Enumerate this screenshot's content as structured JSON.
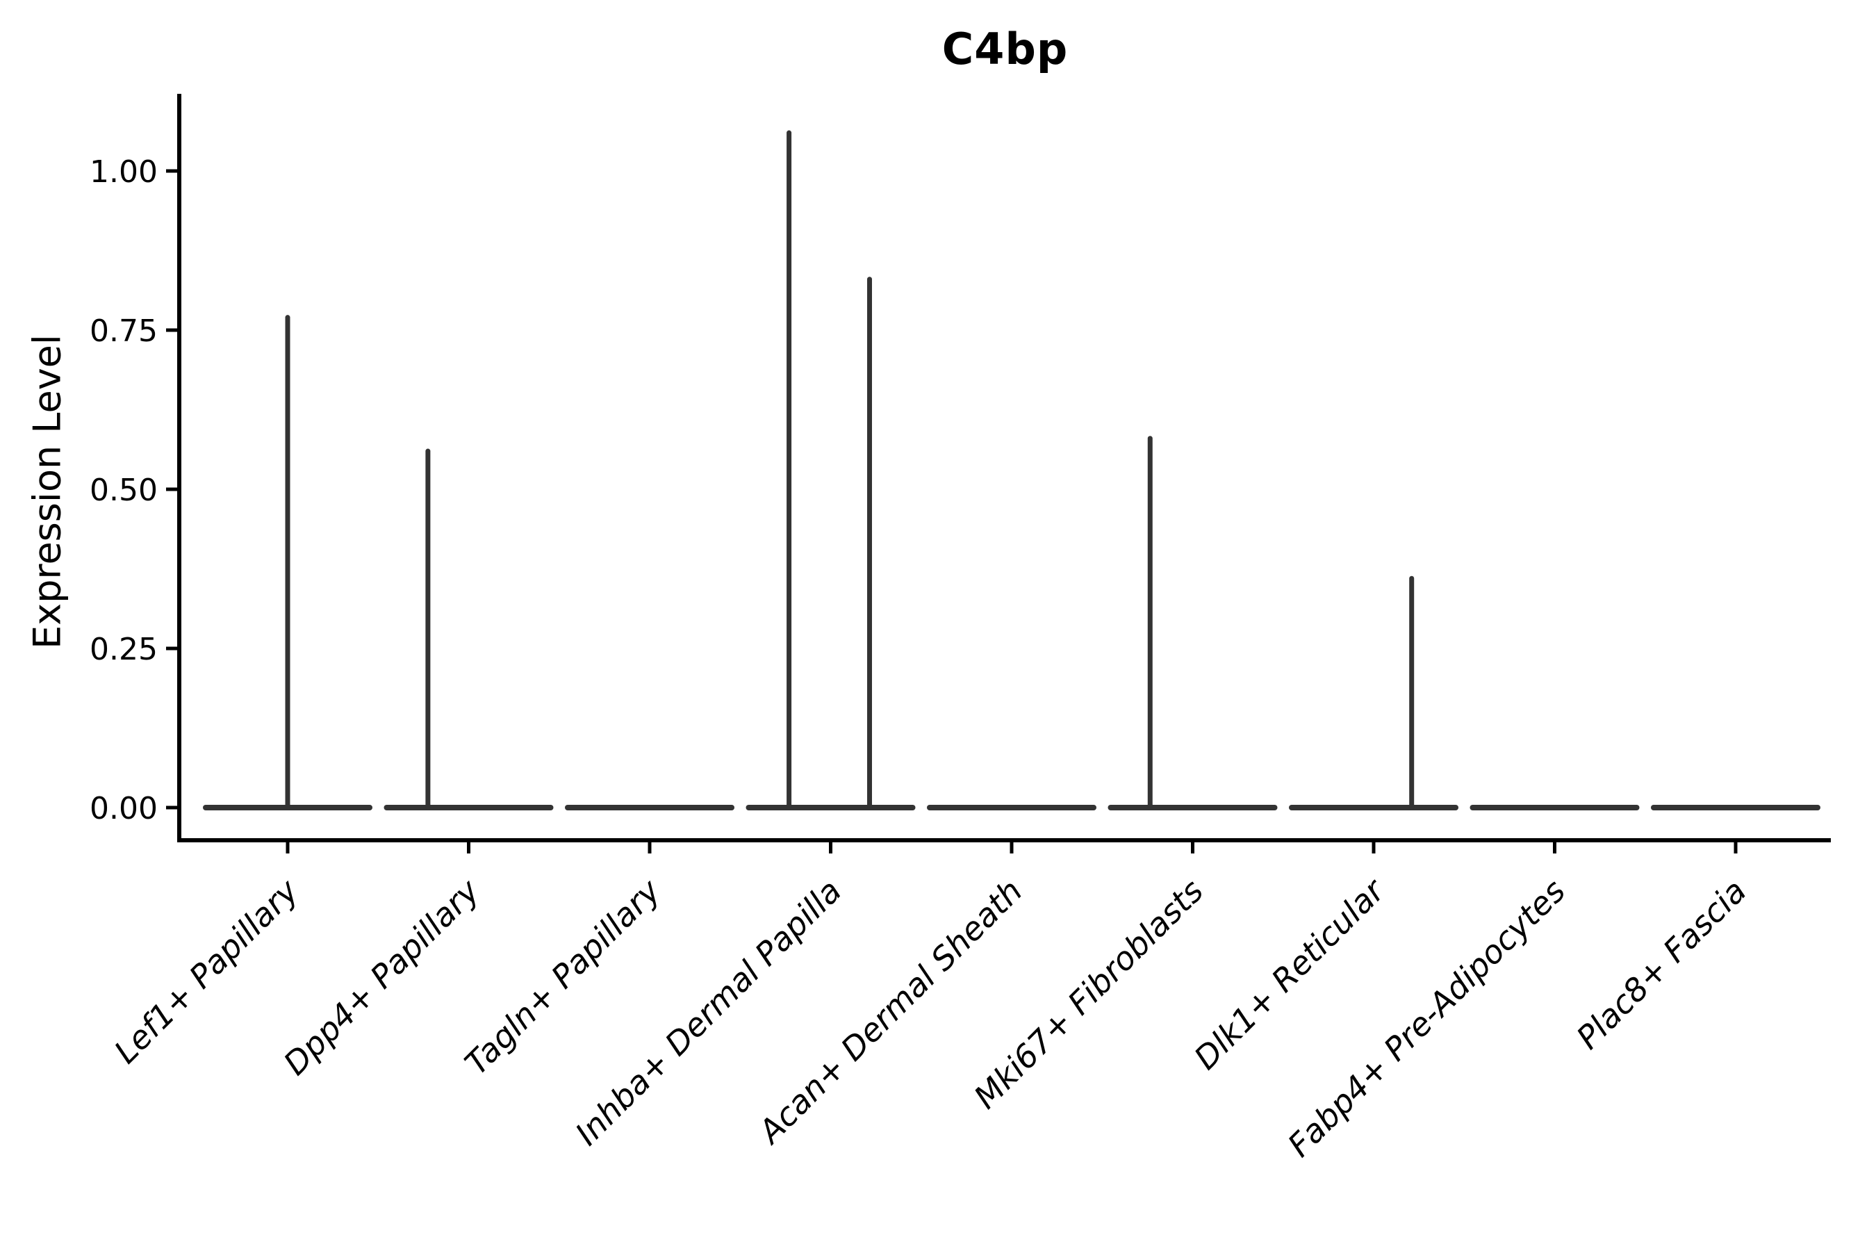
{
  "title": "C4bp",
  "axes": {
    "y_label": "Expression Level",
    "y_ticks": [
      "0.00",
      "0.25",
      "0.50",
      "0.75",
      "1.00"
    ]
  },
  "chart_data": {
    "type": "violin",
    "title": "C4bp",
    "xlabel": "",
    "ylabel": "Expression Level",
    "ylim": [
      0,
      1.12
    ],
    "grid": false,
    "legend_position": "none",
    "y_tick_values": [
      0,
      0.25,
      0.5,
      0.75,
      1.0
    ],
    "y_tick_labels": [
      "0.00",
      "0.25",
      "0.50",
      "0.75",
      "1.00"
    ],
    "categories": [
      "Lef1+ Papillary",
      "Dpp4+ Papillary",
      "Tagln+ Papillary",
      "Inhba+ Dermal Papilla",
      "Acan+ Dermal Sheath",
      "Mki67+ Fibroblasts",
      "Dlk1+ Reticular",
      "Fabp4+ Pre-Adipocytes",
      "Plac8+ Fascia"
    ],
    "violins": [
      {
        "category": "Lef1+ Papillary",
        "baseline_value": 0,
        "spikes": [
          {
            "x_offset_frac": 0.0,
            "max_value": 0.77
          }
        ]
      },
      {
        "category": "Dpp4+ Papillary",
        "baseline_value": 0,
        "spikes": [
          {
            "x_offset_frac": -0.225,
            "max_value": 0.56
          }
        ]
      },
      {
        "category": "Tagln+ Papillary",
        "baseline_value": 0,
        "spikes": []
      },
      {
        "category": "Inhba+ Dermal Papilla",
        "baseline_value": 0,
        "spikes": [
          {
            "x_offset_frac": -0.23,
            "max_value": 1.06
          },
          {
            "x_offset_frac": 0.215,
            "max_value": 0.83
          }
        ]
      },
      {
        "category": "Acan+ Dermal Sheath",
        "baseline_value": 0,
        "spikes": []
      },
      {
        "category": "Mki67+ Fibroblasts",
        "baseline_value": 0,
        "spikes": [
          {
            "x_offset_frac": -0.235,
            "max_value": 0.58
          }
        ]
      },
      {
        "category": "Dlk1+ Reticular",
        "baseline_value": 0,
        "spikes": [
          {
            "x_offset_frac": 0.21,
            "max_value": 0.36
          }
        ]
      },
      {
        "category": "Fabp4+ Pre-Adipocytes",
        "baseline_value": 0,
        "spikes": []
      },
      {
        "category": "Plac8+ Fascia",
        "baseline_value": 0,
        "spikes": []
      }
    ],
    "violin_color": "#333333",
    "axis_color": "#000000",
    "text_color": "#000000"
  }
}
